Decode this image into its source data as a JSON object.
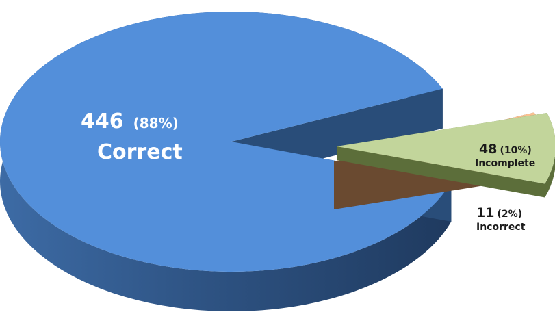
{
  "chart_data": {
    "type": "pie",
    "three_d": true,
    "slices": [
      {
        "category": "Correct",
        "value": 446,
        "percent_label": "(88%)",
        "color": "#538FDA",
        "side_color": "#294D79",
        "label_color": "#FFFFFF"
      },
      {
        "category": "Incomplete",
        "value": 48,
        "percent_label": "(10%)",
        "color": "#C2D59B",
        "side_color": "#5C6E3A",
        "label_color": "#1B1B1B"
      },
      {
        "category": "Incorrect",
        "value": 11,
        "percent_label": "(2%)",
        "color": "#FAC090",
        "side_color": "#6A4A30",
        "label_color": "#1B1B1B"
      }
    ]
  }
}
